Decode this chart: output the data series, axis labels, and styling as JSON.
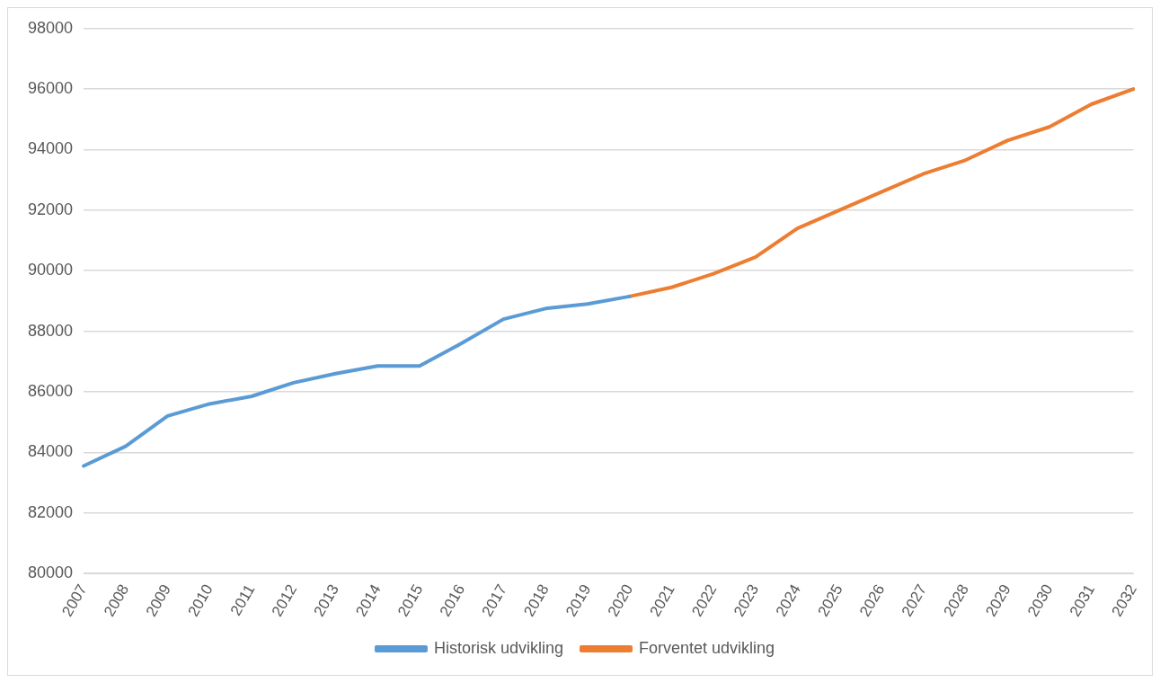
{
  "chart_data": {
    "type": "line",
    "categories": [
      "2007",
      "2008",
      "2009",
      "2010",
      "2011",
      "2012",
      "2013",
      "2014",
      "2015",
      "2016",
      "2017",
      "2018",
      "2019",
      "2020",
      "2021",
      "2022",
      "2023",
      "2024",
      "2025",
      "2026",
      "2027",
      "2028",
      "2029",
      "2030",
      "2031",
      "2032"
    ],
    "series": [
      {
        "name": "Historisk udvikling",
        "color": "#5b9bd5",
        "values": [
          83550,
          84200,
          85200,
          85600,
          85850,
          86300,
          86600,
          86850,
          86850,
          87600,
          88400,
          88750,
          88900,
          89150,
          null,
          null,
          null,
          null,
          null,
          null,
          null,
          null,
          null,
          null,
          null,
          null
        ]
      },
      {
        "name": "Forventet udvikling",
        "color": "#ed7d31",
        "values": [
          null,
          null,
          null,
          null,
          null,
          null,
          null,
          null,
          null,
          null,
          null,
          null,
          null,
          89150,
          89450,
          89900,
          90450,
          91400,
          92000,
          92600,
          93200,
          93650,
          94300,
          94750,
          95500,
          96000
        ]
      }
    ],
    "ylim": [
      80000,
      98000
    ],
    "yticks": [
      80000,
      82000,
      84000,
      86000,
      88000,
      90000,
      92000,
      94000,
      96000,
      98000
    ],
    "grid": "y",
    "legend": "bottom"
  }
}
